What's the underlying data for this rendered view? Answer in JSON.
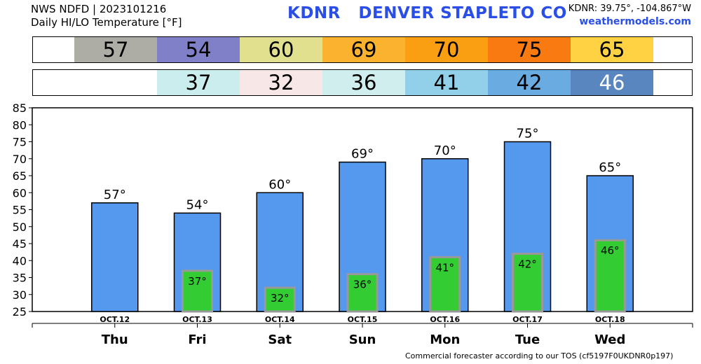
{
  "header": {
    "line1": "NWS NDFD | 2023101216",
    "line2": "Daily HI/LO Temperature [°F]",
    "title": "KDNR   DENVER STAPLETO CO",
    "coords": "KDNR: 39.75°, -104.867°W",
    "site": "weathermodels.com"
  },
  "hi_strip": [
    {
      "label": "57",
      "bg": "#adada6",
      "fg": "#000000"
    },
    {
      "label": "54",
      "bg": "#8080c8",
      "fg": "#000000"
    },
    {
      "label": "60",
      "bg": "#e0e08e",
      "fg": "#000000"
    },
    {
      "label": "69",
      "bg": "#fbb22e",
      "fg": "#000000"
    },
    {
      "label": "70",
      "bg": "#fb9f12",
      "fg": "#000000"
    },
    {
      "label": "75",
      "bg": "#f97a10",
      "fg": "#000000"
    },
    {
      "label": "65",
      "bg": "#fed243",
      "fg": "#000000"
    }
  ],
  "lo_strip": [
    {
      "label": "37",
      "bg": "#cceded",
      "fg": "#000000"
    },
    {
      "label": "32",
      "bg": "#f7e7e7",
      "fg": "#000000"
    },
    {
      "label": "36",
      "bg": "#d0eeee",
      "fg": "#000000"
    },
    {
      "label": "41",
      "bg": "#92d0ea",
      "fg": "#000000"
    },
    {
      "label": "42",
      "bg": "#6aace2",
      "fg": "#000000"
    },
    {
      "label": "46",
      "bg": "#5a86c0",
      "fg": "#ffffff"
    }
  ],
  "chart_data": {
    "type": "bar",
    "days": [
      "Thu",
      "Fri",
      "Sat",
      "Sun",
      "Mon",
      "Tue",
      "Wed"
    ],
    "dates": [
      "OCT.12",
      "OCT.13",
      "OCT.14",
      "OCT.15",
      "OCT.16",
      "OCT.17",
      "OCT.18"
    ],
    "series": [
      {
        "name": "HI",
        "values": [
          57,
          54,
          60,
          69,
          70,
          75,
          65
        ],
        "labels": [
          "57°",
          "54°",
          "60°",
          "69°",
          "70°",
          "75°",
          "65°"
        ],
        "color": "#5599ee"
      },
      {
        "name": "LO",
        "values": [
          null,
          37,
          32,
          36,
          41,
          42,
          46
        ],
        "labels": [
          "",
          "37°",
          "32°",
          "36°",
          "41°",
          "42°",
          "46°"
        ],
        "color": "#33cc33"
      }
    ],
    "yticks": [
      "85",
      "80",
      "75",
      "70",
      "65",
      "60",
      "55",
      "50",
      "45",
      "40",
      "35",
      "30",
      "25"
    ],
    "ylim": [
      25,
      85
    ],
    "grid": false
  },
  "footer": "Commercial forecaster according to our TOS (cf5197F0UKDNR0p197)"
}
